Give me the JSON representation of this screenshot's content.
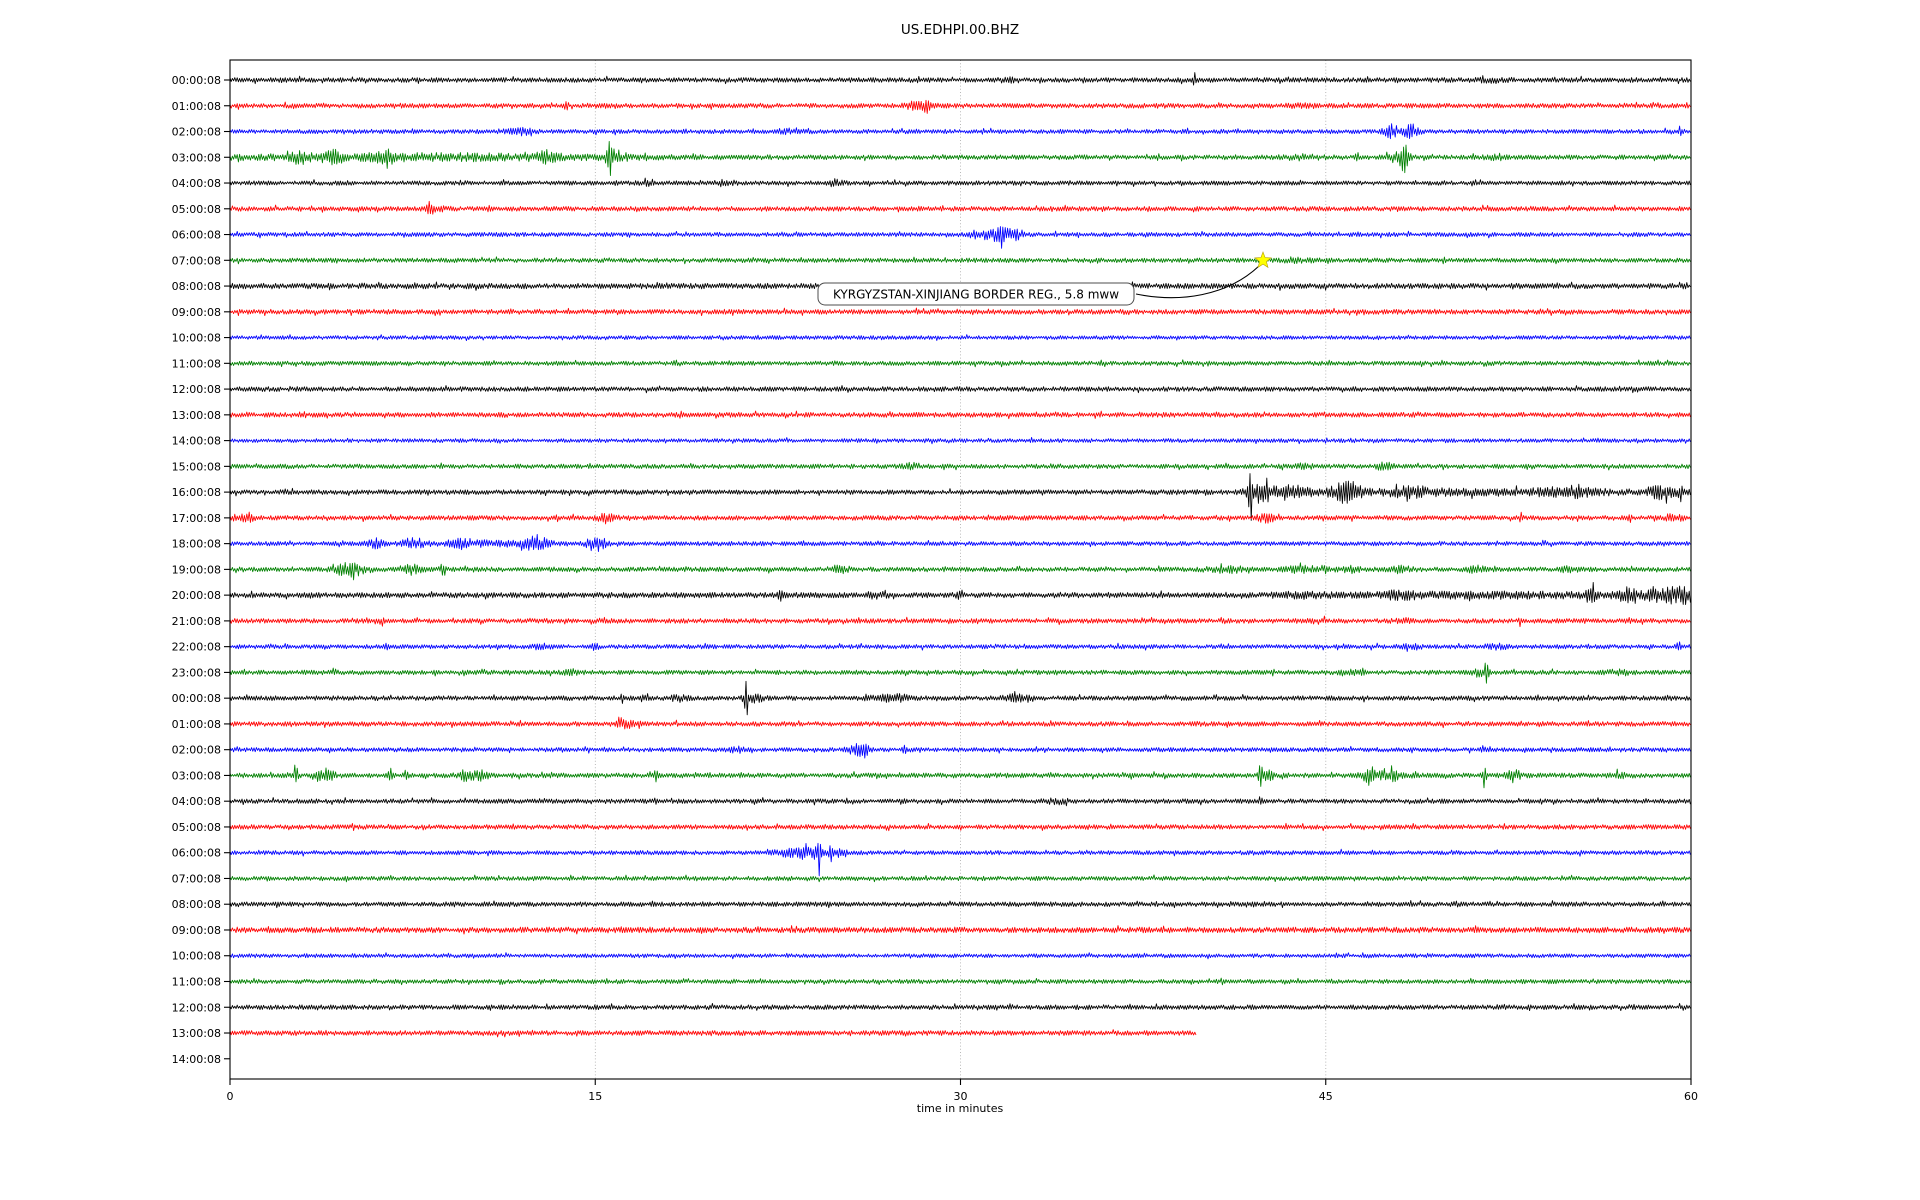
{
  "window_title": "US.EDHPI.00.BHZ",
  "chart_data": {
    "type": "line",
    "subtype": "seismogram-dayplot",
    "title": "US.EDHPI.00.BHZ",
    "xlabel": "time in minutes",
    "xlim": [
      0,
      60
    ],
    "x_ticks": [
      0,
      15,
      30,
      45,
      60
    ],
    "grid": {
      "vertical_dotted_minutes": [
        15,
        30,
        45
      ]
    },
    "color_cycle": [
      "#000000",
      "#ff0000",
      "#0000ff",
      "#008000"
    ],
    "annotation": {
      "text": "KYRGYZSTAN-XINJIANG BORDER REG., 5.8 mww",
      "marker": "star",
      "marker_color": "#ffff00",
      "row_label": "07:00:08",
      "row_index": 7,
      "t_minutes": 42.5
    },
    "rows": [
      {
        "label": "00:00:08",
        "color": "#000000",
        "amp": 2.4,
        "end": 60,
        "events": [
          [
            32,
            1,
            0.5
          ],
          [
            39.6,
            5,
            0.06
          ],
          [
            52,
            1.5,
            0.8
          ]
        ]
      },
      {
        "label": "01:00:08",
        "color": "#ff0000",
        "amp": 2.4,
        "end": 60,
        "events": [
          [
            13.8,
            3.5,
            0.08
          ],
          [
            28.3,
            3.5,
            0.5
          ],
          [
            28.6,
            4,
            0.12
          ],
          [
            44,
            1,
            0.6
          ]
        ]
      },
      {
        "label": "02:00:08",
        "color": "#0000ff",
        "amp": 2.2,
        "end": 60,
        "events": [
          [
            11.8,
            2.5,
            0.5
          ],
          [
            12.3,
            3,
            0.1
          ],
          [
            23,
            1.5,
            0.4
          ],
          [
            47.7,
            6,
            0.3
          ],
          [
            48.5,
            6,
            0.3
          ],
          [
            59.6,
            3,
            0.12
          ]
        ]
      },
      {
        "label": "03:00:08",
        "color": "#008000",
        "amp": 2.4,
        "end": 60,
        "events": [
          [
            8,
            2.5,
            8
          ],
          [
            2.9,
            5,
            0.3
          ],
          [
            4.3,
            4,
            0.5
          ],
          [
            6.4,
            4,
            0.4
          ],
          [
            13,
            4,
            0.4
          ],
          [
            15.6,
            14,
            0.1
          ],
          [
            15.8,
            5,
            0.4
          ],
          [
            44,
            1.5,
            0.8
          ],
          [
            46.3,
            5,
            0.07
          ],
          [
            48,
            5,
            0.4
          ],
          [
            48.2,
            12,
            0.15
          ],
          [
            52,
            2,
            0.4
          ]
        ]
      },
      {
        "label": "04:00:08",
        "color": "#000000",
        "amp": 2.2,
        "end": 60,
        "events": [
          [
            17,
            1.5,
            0.5
          ],
          [
            20.3,
            2,
            0.5
          ],
          [
            24.8,
            3,
            0.3
          ]
        ]
      },
      {
        "label": "05:00:08",
        "color": "#ff0000",
        "amp": 2.4,
        "end": 60,
        "events": [
          [
            8.2,
            5,
            0.1
          ],
          [
            8.5,
            2.5,
            0.4
          ],
          [
            10.6,
            3,
            0.08
          ]
        ]
      },
      {
        "label": "06:00:08",
        "color": "#0000ff",
        "amp": 2.2,
        "end": 60,
        "events": [
          [
            30.7,
            3,
            0.3
          ],
          [
            31.5,
            6,
            0.5
          ],
          [
            31.7,
            12,
            0.1
          ],
          [
            32.3,
            4,
            0.4
          ]
        ]
      },
      {
        "label": "07:00:08",
        "color": "#008000",
        "amp": 2.3,
        "end": 60,
        "events": [
          [
            44,
            1.2,
            0.8
          ]
        ]
      },
      {
        "label": "08:00:08",
        "color": "#000000",
        "amp": 2.8,
        "end": 60,
        "events": []
      },
      {
        "label": "09:00:08",
        "color": "#ff0000",
        "amp": 2.5,
        "end": 60,
        "events": []
      },
      {
        "label": "10:00:08",
        "color": "#0000ff",
        "amp": 2.0,
        "end": 60,
        "events": []
      },
      {
        "label": "11:00:08",
        "color": "#008000",
        "amp": 2.2,
        "end": 60,
        "events": []
      },
      {
        "label": "12:00:08",
        "color": "#000000",
        "amp": 2.4,
        "end": 60,
        "events": []
      },
      {
        "label": "13:00:08",
        "color": "#ff0000",
        "amp": 2.5,
        "end": 60,
        "events": []
      },
      {
        "label": "14:00:08",
        "color": "#0000ff",
        "amp": 2.0,
        "end": 60,
        "events": []
      },
      {
        "label": "15:00:08",
        "color": "#008000",
        "amp": 2.3,
        "end": 60,
        "events": [
          [
            28,
            2.5,
            0.4
          ],
          [
            44,
            1.5,
            0.6
          ],
          [
            47.4,
            2.5,
            0.4
          ]
        ]
      },
      {
        "label": "16:00:08",
        "color": "#000000",
        "amp": 2.4,
        "end": 60,
        "events": [
          [
            41.9,
            26,
            0.09
          ],
          [
            42.3,
            8,
            0.5
          ],
          [
            43.5,
            6,
            0.8
          ],
          [
            45.7,
            7,
            0.5
          ],
          [
            46.2,
            5,
            0.3
          ],
          [
            48.5,
            3,
            0.8
          ],
          [
            51,
            2,
            8
          ],
          [
            55,
            3,
            1
          ],
          [
            58.8,
            5,
            0.6
          ],
          [
            59.6,
            9,
            0.1
          ]
        ]
      },
      {
        "label": "17:00:08",
        "color": "#ff0000",
        "amp": 2.4,
        "end": 60,
        "events": [
          [
            0.6,
            4,
            0.4
          ],
          [
            13.4,
            4,
            0.08
          ],
          [
            15.4,
            4,
            0.3
          ],
          [
            42.5,
            4,
            0.3
          ],
          [
            53,
            6,
            0.06
          ],
          [
            57.5,
            5,
            0.06
          ],
          [
            59.3,
            4,
            0.3
          ]
        ]
      },
      {
        "label": "18:00:08",
        "color": "#0000ff",
        "amp": 2.2,
        "end": 60,
        "events": [
          [
            6,
            4,
            0.3
          ],
          [
            7.5,
            4,
            0.4
          ],
          [
            9.6,
            3,
            0.3
          ],
          [
            10,
            1.8,
            3
          ],
          [
            12.2,
            4,
            0.3
          ],
          [
            12.8,
            4,
            0.3
          ],
          [
            14.9,
            5,
            0.3
          ],
          [
            15.3,
            4,
            0.2
          ]
        ]
      },
      {
        "label": "19:00:08",
        "color": "#008000",
        "amp": 2.4,
        "end": 60,
        "events": [
          [
            4.7,
            4,
            0.4
          ],
          [
            5.2,
            3,
            0.6
          ],
          [
            7.4,
            4,
            0.4
          ],
          [
            8.7,
            4,
            0.12
          ],
          [
            25,
            2.5,
            0.4
          ],
          [
            41,
            2,
            0.8
          ],
          [
            44,
            2,
            0.8
          ],
          [
            46,
            2,
            0.5
          ],
          [
            48,
            2.5,
            0.5
          ],
          [
            51.2,
            3,
            0.3
          ],
          [
            55,
            1.5,
            0.5
          ]
        ]
      },
      {
        "label": "20:00:08",
        "color": "#000000",
        "amp": 2.8,
        "end": 60,
        "events": [
          [
            22.6,
            4,
            0.09
          ],
          [
            26.5,
            2,
            0.4
          ],
          [
            30,
            3,
            0.12
          ],
          [
            44,
            1.5,
            1
          ],
          [
            48,
            2,
            0.8
          ],
          [
            52,
            1.5,
            6
          ],
          [
            55.9,
            7,
            0.2
          ],
          [
            57.4,
            5,
            0.4
          ],
          [
            58.4,
            6,
            0.3
          ],
          [
            59.2,
            7,
            0.4
          ],
          [
            59.8,
            6,
            0.3
          ]
        ]
      },
      {
        "label": "21:00:08",
        "color": "#ff0000",
        "amp": 2.4,
        "end": 60,
        "events": [
          [
            6.3,
            5,
            0.07
          ],
          [
            44.5,
            1.5,
            0.5
          ],
          [
            48.2,
            3,
            0.3
          ],
          [
            53,
            4,
            0.07
          ],
          [
            57.5,
            3.5,
            0.07
          ]
        ]
      },
      {
        "label": "22:00:08",
        "color": "#0000ff",
        "amp": 2.2,
        "end": 60,
        "events": [
          [
            6.5,
            4,
            0.09
          ],
          [
            12.8,
            2,
            0.3
          ],
          [
            15,
            2.5,
            0.12
          ],
          [
            48.5,
            2.5,
            0.4
          ],
          [
            52,
            1.5,
            0.5
          ],
          [
            59.5,
            7,
            0.09
          ]
        ]
      },
      {
        "label": "23:00:08",
        "color": "#008000",
        "amp": 2.3,
        "end": 60,
        "events": [
          [
            4.3,
            4,
            0.09
          ],
          [
            14,
            2,
            0.3
          ],
          [
            46,
            2,
            0.5
          ],
          [
            51.3,
            3,
            0.3
          ],
          [
            51.6,
            8,
            0.1
          ],
          [
            57,
            1.5,
            0.5
          ]
        ]
      },
      {
        "label": "00:00:08",
        "color": "#000000",
        "amp": 2.4,
        "end": 60,
        "events": [
          [
            16.1,
            3,
            0.09
          ],
          [
            17.1,
            3,
            0.09
          ],
          [
            18.5,
            2,
            0.4
          ],
          [
            21.2,
            16,
            0.08
          ],
          [
            21.5,
            3,
            0.4
          ],
          [
            26.8,
            2.5,
            0.5
          ],
          [
            27.7,
            2,
            0.3
          ],
          [
            32.4,
            3,
            0.6
          ]
        ]
      },
      {
        "label": "01:00:08",
        "color": "#ff0000",
        "amp": 2.4,
        "end": 60,
        "events": [
          [
            16,
            3,
            0.12
          ],
          [
            16.3,
            4,
            0.4
          ]
        ]
      },
      {
        "label": "02:00:08",
        "color": "#0000ff",
        "amp": 2.2,
        "end": 60,
        "events": [
          [
            20.8,
            2,
            0.3
          ],
          [
            25.8,
            5,
            0.4
          ],
          [
            26.1,
            4,
            0.12
          ],
          [
            27.7,
            3,
            0.09
          ],
          [
            51.5,
            3,
            0.09
          ]
        ]
      },
      {
        "label": "03:00:08",
        "color": "#008000",
        "amp": 2.5,
        "end": 60,
        "events": [
          [
            2.7,
            14,
            0.07
          ],
          [
            3.6,
            5,
            0.1
          ],
          [
            4,
            4,
            0.3
          ],
          [
            6.6,
            6,
            0.09
          ],
          [
            7.2,
            4,
            0.09
          ],
          [
            9.8,
            5,
            0.4
          ],
          [
            10.4,
            4,
            0.2
          ],
          [
            17.5,
            5,
            0.07
          ],
          [
            42.3,
            15,
            0.07
          ],
          [
            42.6,
            4,
            0.3
          ],
          [
            46.8,
            7,
            0.3
          ],
          [
            47.6,
            5,
            0.6
          ],
          [
            51.5,
            14,
            0.07
          ],
          [
            52.7,
            5,
            0.3
          ],
          [
            57,
            2,
            0.4
          ]
        ]
      },
      {
        "label": "04:00:08",
        "color": "#000000",
        "amp": 2.3,
        "end": 60,
        "events": [
          [
            27.6,
            3,
            0.07
          ],
          [
            34,
            1.5,
            0.5
          ],
          [
            42.3,
            4,
            0.09
          ]
        ]
      },
      {
        "label": "05:00:08",
        "color": "#ff0000",
        "amp": 2.4,
        "end": 60,
        "events": []
      },
      {
        "label": "06:00:08",
        "color": "#0000ff",
        "amp": 2.2,
        "end": 60,
        "events": [
          [
            23,
            3,
            0.6
          ],
          [
            23.5,
            4,
            0.2
          ],
          [
            24,
            5,
            0.3
          ],
          [
            24.2,
            18,
            0.07
          ],
          [
            24.7,
            7,
            0.12
          ],
          [
            25.1,
            5,
            0.2
          ]
        ]
      },
      {
        "label": "07:00:08",
        "color": "#008000",
        "amp": 2.2,
        "end": 60,
        "events": []
      },
      {
        "label": "08:00:08",
        "color": "#000000",
        "amp": 2.4,
        "end": 60,
        "events": []
      },
      {
        "label": "09:00:08",
        "color": "#ff0000",
        "amp": 2.9,
        "end": 60,
        "events": []
      },
      {
        "label": "10:00:08",
        "color": "#0000ff",
        "amp": 2.0,
        "end": 60,
        "events": []
      },
      {
        "label": "11:00:08",
        "color": "#008000",
        "amp": 2.2,
        "end": 60,
        "events": []
      },
      {
        "label": "12:00:08",
        "color": "#000000",
        "amp": 2.4,
        "end": 60,
        "events": []
      },
      {
        "label": "13:00:08",
        "color": "#ff0000",
        "amp": 2.5,
        "end": 39.7,
        "events": []
      },
      {
        "label": "14:00:08",
        "color": "#0000ff",
        "amp": 0,
        "end": 0,
        "events": []
      }
    ]
  }
}
